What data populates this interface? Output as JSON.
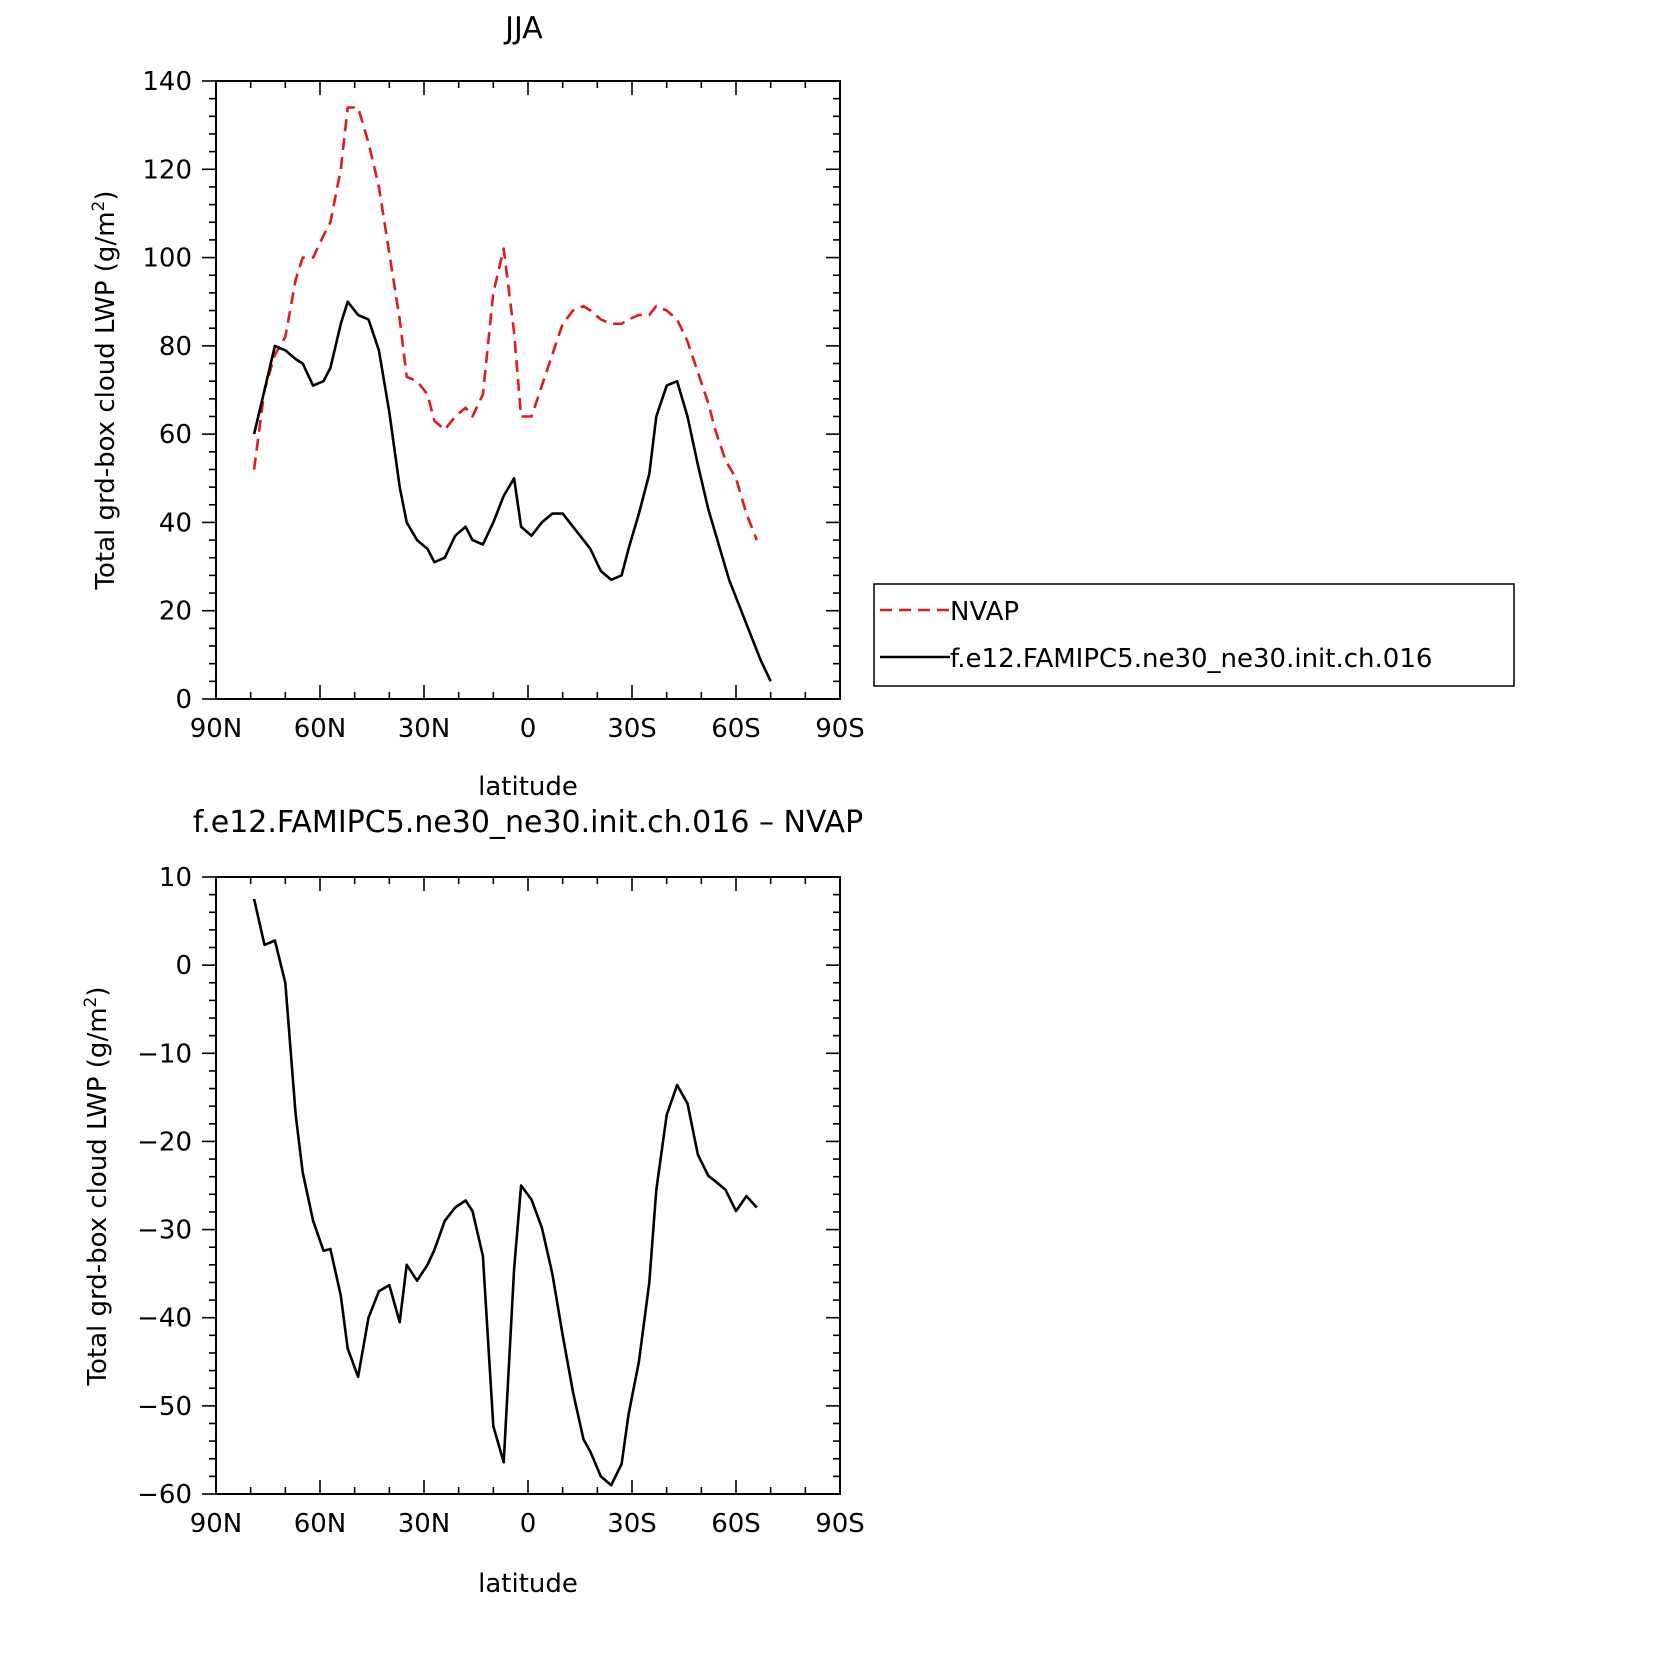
{
  "chart_data": [
    {
      "type": "line",
      "title": "JJA",
      "xlabel": "latitude",
      "ylabel": "Total grd-box cloud LWP (g/m²)",
      "ylabel_main": "Total grd-box cloud LWP (g/m",
      "ylabel_sup": "2",
      "ylabel_end": ")",
      "xlim": [
        90,
        -90
      ],
      "ylim": [
        0,
        140
      ],
      "x_ticks": [
        {
          "value": 90,
          "label": "90N"
        },
        {
          "value": 60,
          "label": "60N"
        },
        {
          "value": 30,
          "label": "30N"
        },
        {
          "value": 0,
          "label": "0"
        },
        {
          "value": -30,
          "label": "30S"
        },
        {
          "value": -60,
          "label": "60S"
        },
        {
          "value": -90,
          "label": "90S"
        }
      ],
      "y_ticks": [
        {
          "value": 0,
          "label": "0"
        },
        {
          "value": 20,
          "label": "20"
        },
        {
          "value": 40,
          "label": "40"
        },
        {
          "value": 60,
          "label": "60"
        },
        {
          "value": 80,
          "label": "80"
        },
        {
          "value": 100,
          "label": "100"
        },
        {
          "value": 120,
          "label": "120"
        },
        {
          "value": 140,
          "label": "140"
        }
      ],
      "grid": false,
      "legend_position": "right",
      "series": [
        {
          "name": "NVAP",
          "color": "#e31a1c",
          "style": "dashed",
          "x": [
            79,
            76,
            73,
            70,
            67,
            65,
            62,
            59,
            57,
            54,
            52,
            49,
            46,
            43,
            40,
            37,
            35,
            32,
            29,
            27,
            24,
            21,
            18,
            16,
            13,
            10,
            7,
            4,
            2,
            -1,
            -4,
            -7,
            -10,
            -13,
            -16,
            -18,
            -21,
            -24,
            -27,
            -29,
            -32,
            -35,
            -37,
            -40,
            -43,
            -46,
            -49,
            -52,
            -54,
            -57,
            -60,
            -63,
            -66
          ],
          "y": [
            52,
            70,
            78,
            82,
            95,
            100,
            100,
            105,
            108,
            120,
            134,
            134,
            126,
            116,
            101,
            86,
            73,
            72,
            69,
            63,
            61,
            64,
            66,
            64,
            69,
            92,
            102,
            83,
            64,
            64,
            71,
            78,
            85,
            88,
            89,
            88,
            86,
            85,
            85,
            86,
            87,
            87,
            89,
            88,
            86,
            81,
            74,
            67,
            61,
            54,
            50,
            42,
            36
          ]
        },
        {
          "name": "f.e12.FAMIPC5.ne30_ne30.init.ch.016",
          "color": "#000000",
          "style": "solid",
          "x": [
            79,
            76,
            73,
            70,
            67,
            65,
            62,
            59,
            57,
            54,
            52,
            49,
            46,
            43,
            40,
            37,
            35,
            32,
            29,
            27,
            24,
            21,
            18,
            16,
            13,
            10,
            7,
            4,
            2,
            -1,
            -4,
            -7,
            -10,
            -13,
            -16,
            -18,
            -21,
            -24,
            -27,
            -29,
            -32,
            -35,
            -37,
            -40,
            -43,
            -46,
            -49,
            -52,
            -55,
            -58,
            -61,
            -64,
            -67,
            -70
          ],
          "y": [
            60,
            70,
            80,
            79,
            77,
            76,
            71,
            72,
            75,
            85,
            90,
            87,
            86,
            79,
            65,
            48,
            40,
            36,
            34,
            31,
            32,
            37,
            39,
            36,
            35,
            40,
            46,
            50,
            39,
            37,
            40,
            42,
            42,
            39,
            36,
            34,
            29,
            27,
            28,
            34,
            42,
            51,
            64,
            71,
            72,
            64,
            53,
            43,
            35,
            27,
            21,
            15,
            9,
            4
          ]
        }
      ]
    },
    {
      "type": "line",
      "title": "f.e12.FAMIPC5.ne30_ne30.init.ch.016 – NVAP",
      "xlabel": "latitude",
      "ylabel": "Total grd-box cloud LWP (g/m²)",
      "ylabel_main": "Total grd-box cloud LWP (g/m",
      "ylabel_sup": "2",
      "ylabel_end": ")",
      "xlim": [
        90,
        -90
      ],
      "ylim": [
        -60,
        10
      ],
      "x_ticks": [
        {
          "value": 90,
          "label": "90N"
        },
        {
          "value": 60,
          "label": "60N"
        },
        {
          "value": 30,
          "label": "30N"
        },
        {
          "value": 0,
          "label": "0"
        },
        {
          "value": -30,
          "label": "30S"
        },
        {
          "value": -60,
          "label": "60S"
        },
        {
          "value": -90,
          "label": "90S"
        }
      ],
      "y_ticks": [
        {
          "value": -60,
          "label": "−60"
        },
        {
          "value": -50,
          "label": "−50"
        },
        {
          "value": -40,
          "label": "−40"
        },
        {
          "value": -30,
          "label": "−30"
        },
        {
          "value": -20,
          "label": "−20"
        },
        {
          "value": -10,
          "label": "−10"
        },
        {
          "value": 0,
          "label": "0"
        },
        {
          "value": 10,
          "label": "10"
        }
      ],
      "grid": false,
      "series": [
        {
          "color": "#000000",
          "style": "solid",
          "x": [
            79,
            76,
            73,
            70,
            67,
            65,
            62,
            59,
            57,
            54,
            52,
            49,
            46,
            43,
            40,
            37,
            35,
            32,
            29,
            27,
            24,
            21,
            18,
            16,
            13,
            10,
            7,
            4,
            2,
            -1,
            -4,
            -7,
            -10,
            -13,
            -16,
            -18,
            -21,
            -24,
            -27,
            -29,
            -32,
            -35,
            -37,
            -40,
            -43,
            -46,
            -49,
            -52,
            -54,
            -57,
            -60,
            -63,
            -66
          ],
          "y": [
            7.5,
            2.3,
            2.8,
            -2,
            -17,
            -23.5,
            -29,
            -32.4,
            -32.2,
            -37.5,
            -43.5,
            -46.7,
            -40,
            -37,
            -36.3,
            -40.5,
            -34,
            -35.8,
            -34,
            -32.3,
            -29,
            -27.5,
            -26.7,
            -27.9,
            -33,
            -52.3,
            -56.4,
            -34.5,
            -25,
            -26.6,
            -29.8,
            -35,
            -42,
            -48.5,
            -53.8,
            -55.2,
            -58,
            -59,
            -56.6,
            -51,
            -45,
            -36,
            -25.5,
            -17,
            -13.6,
            -15.7,
            -21.5,
            -23.9,
            -24.5,
            -25.5,
            -27.9,
            -26.2,
            -27.5
          ]
        }
      ]
    }
  ]
}
